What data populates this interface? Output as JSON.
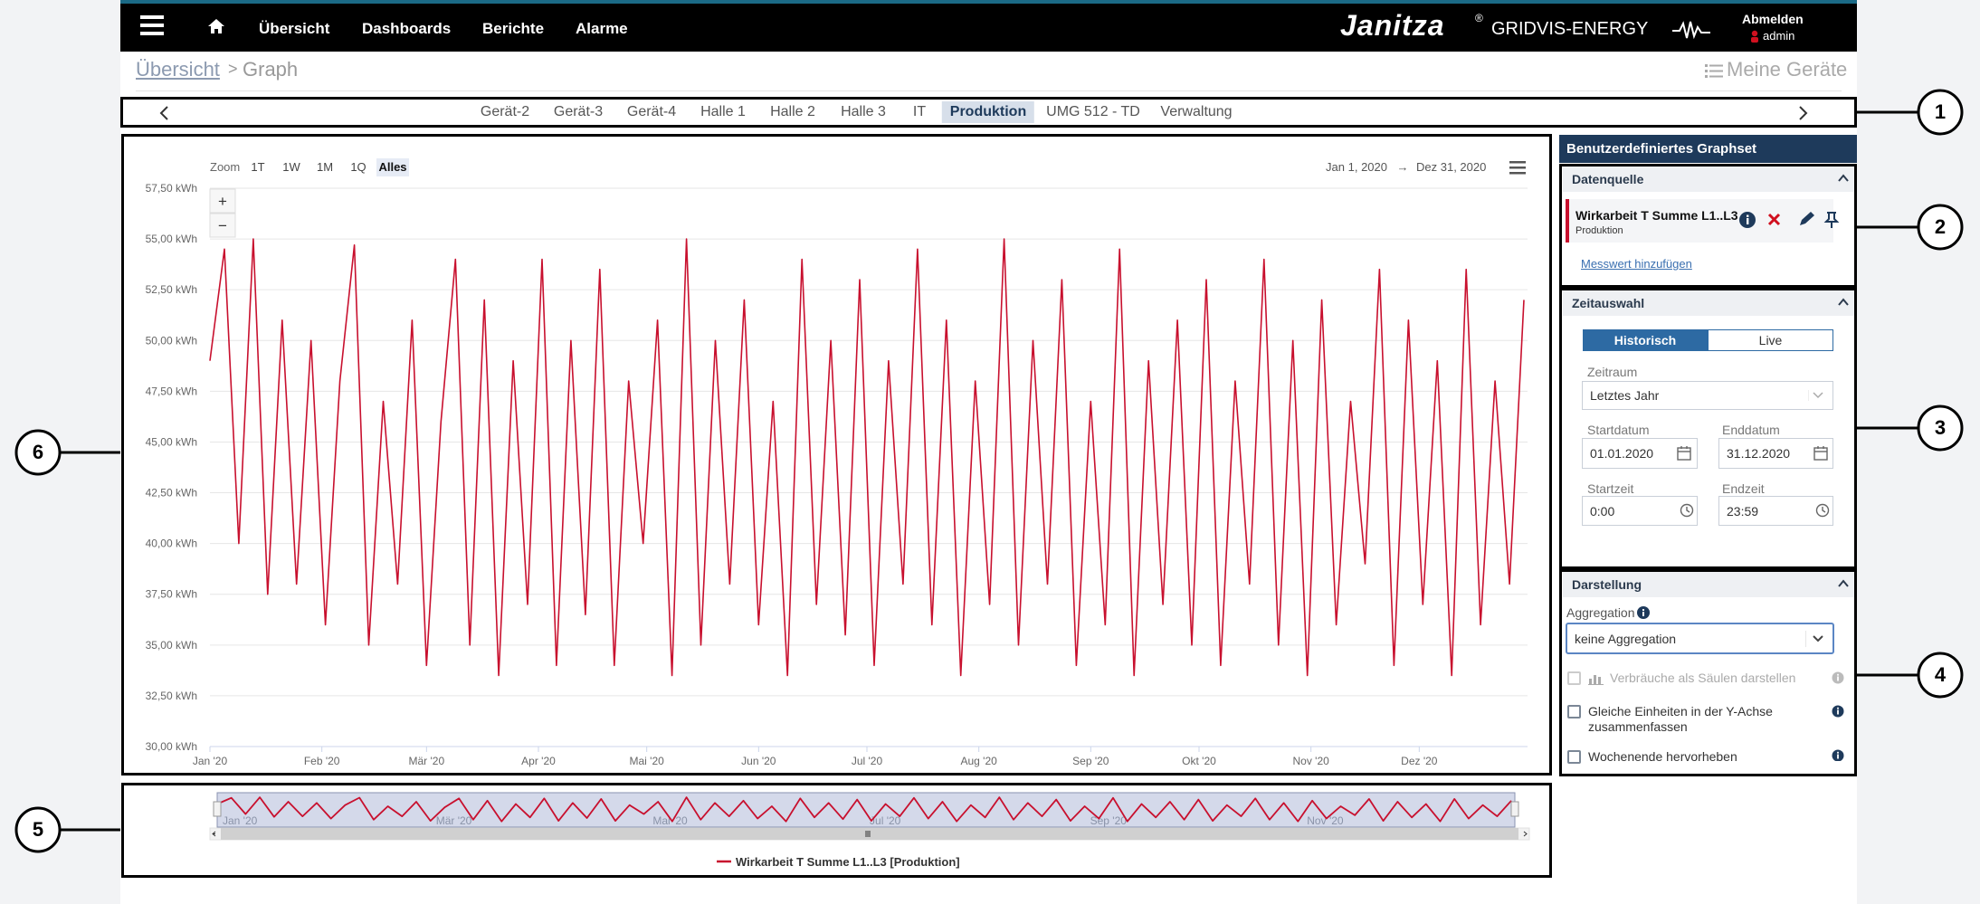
{
  "nav": {
    "items": [
      "Übersicht",
      "Dashboards",
      "Berichte",
      "Alarme"
    ],
    "brand": "Janitza",
    "trademark": "®",
    "product": "GRIDVIS-ENERGY",
    "logout": "Abmelden",
    "user": "admin"
  },
  "breadcrumb": {
    "link": "Übersicht",
    "separator": ">",
    "current": "Graph",
    "devices": "Meine Geräte"
  },
  "tabs": [
    {
      "label": "Gerät-2"
    },
    {
      "label": "Gerät-3"
    },
    {
      "label": "Gerät-4"
    },
    {
      "label": "Halle 1"
    },
    {
      "label": "Halle 2"
    },
    {
      "label": "Halle 3"
    },
    {
      "label": "IT"
    },
    {
      "label": "Produktion",
      "active": true
    },
    {
      "label": "UMG 512 - TD"
    },
    {
      "label": "Verwaltung"
    }
  ],
  "chart_data": {
    "type": "line",
    "zoom_label": "Zoom",
    "zoom_buttons": [
      {
        "label": "1T"
      },
      {
        "label": "1W"
      },
      {
        "label": "1M"
      },
      {
        "label": "1Q"
      },
      {
        "label": "Alles",
        "active": true
      }
    ],
    "zoom_in": "+",
    "zoom_out": "−",
    "range_from": "Jan 1, 2020",
    "range_separator": "→",
    "range_to": "Dez 31, 2020",
    "x": [
      0,
      4,
      8,
      12,
      16,
      20,
      24,
      28,
      32,
      36,
      40,
      44,
      48,
      52,
      56,
      60,
      64,
      68,
      72,
      76,
      80,
      84,
      88,
      92,
      96,
      100,
      104,
      108,
      112,
      116,
      120,
      124,
      128,
      132,
      136,
      140,
      144,
      148,
      152,
      156,
      160,
      164,
      168,
      172,
      176,
      180,
      184,
      188,
      192,
      196,
      200,
      204,
      208,
      212,
      216,
      220,
      224,
      228,
      232,
      236,
      240,
      244,
      248,
      252,
      256,
      260,
      264,
      268,
      272,
      276,
      280,
      284,
      288,
      292,
      296,
      300,
      304,
      308,
      312,
      316,
      320,
      324,
      328,
      332,
      336,
      340,
      344,
      348,
      352,
      356,
      360,
      364
    ],
    "series": [
      {
        "name": "Wirkarbeit T Summe L1..L3 [Produktion]",
        "color": "#c8102e",
        "values": [
          49,
          54.5,
          40,
          55,
          37.5,
          51,
          38,
          50,
          36,
          48,
          54.7,
          35,
          47,
          38,
          51,
          34,
          46,
          54,
          35,
          52,
          33.5,
          49,
          37,
          54,
          34,
          50,
          36.5,
          53.5,
          34,
          48,
          40,
          51,
          33.5,
          55,
          35,
          50,
          38,
          52,
          36,
          47,
          33.5,
          54,
          37,
          50,
          35.5,
          53,
          34,
          49,
          38,
          54.5,
          36,
          51,
          33.5,
          48,
          37,
          55,
          35,
          50,
          38,
          53,
          34,
          47,
          36,
          54.5,
          33.5,
          49,
          37,
          51,
          35,
          53,
          34,
          48,
          38,
          54,
          35,
          50,
          33.5,
          52,
          36,
          47,
          39,
          53.5,
          34,
          51,
          37,
          49,
          33.5,
          53.5,
          36,
          48,
          38,
          52
        ]
      }
    ],
    "xlim": [
      0,
      365
    ],
    "xticks": [
      {
        "value": 0,
        "label": "Jan '20"
      },
      {
        "value": 31,
        "label": "Feb '20"
      },
      {
        "value": 60,
        "label": "Mär '20"
      },
      {
        "value": 91,
        "label": "Apr '20"
      },
      {
        "value": 121,
        "label": "Mai '20"
      },
      {
        "value": 152,
        "label": "Jun '20"
      },
      {
        "value": 182,
        "label": "Jul '20"
      },
      {
        "value": 213,
        "label": "Aug '20"
      },
      {
        "value": 244,
        "label": "Sep '20"
      },
      {
        "value": 274,
        "label": "Okt '20"
      },
      {
        "value": 305,
        "label": "Nov '20"
      },
      {
        "value": 335,
        "label": "Dez '20"
      }
    ],
    "ylim": [
      30,
      57.5
    ],
    "yticks": [
      {
        "value": 30,
        "label": "30,00 kWh"
      },
      {
        "value": 32.5,
        "label": "32,50 kWh"
      },
      {
        "value": 35,
        "label": "35,00 kWh"
      },
      {
        "value": 37.5,
        "label": "37,50 kWh"
      },
      {
        "value": 40,
        "label": "40,00 kWh"
      },
      {
        "value": 42.5,
        "label": "42,50 kWh"
      },
      {
        "value": 45,
        "label": "45,00 kWh"
      },
      {
        "value": 47.5,
        "label": "47,50 kWh"
      },
      {
        "value": 50,
        "label": "50,00 kWh"
      },
      {
        "value": 52.5,
        "label": "52,50 kWh"
      },
      {
        "value": 55,
        "label": "55,00 kWh"
      },
      {
        "value": 57.5,
        "label": "57,50 kWh"
      }
    ],
    "grid": true,
    "legend": "bottom",
    "navigator_labels": [
      "Jan '20",
      "Mär '20",
      "Mai '20",
      "Jul '20",
      "Sep '20",
      "Nov '20"
    ]
  },
  "panel": {
    "title": "Benutzerdefiniertes Graphset",
    "source": {
      "heading": "Datenquelle",
      "name": "Wirkarbeit T Summe L1..L3",
      "device": "Produktion",
      "add": "Messwert hinzufügen"
    },
    "time": {
      "heading": "Zeitauswahl",
      "modes": [
        "Historisch",
        "Live"
      ],
      "period_label": "Zeitraum",
      "period": "Letztes Jahr",
      "start_date_label": "Startdatum",
      "start_date": "01.01.2020",
      "end_date_label": "Enddatum",
      "end_date": "31.12.2020",
      "start_time_label": "Startzeit",
      "start_time": "0:00",
      "end_time_label": "Endzeit",
      "end_time": "23:59"
    },
    "display": {
      "heading": "Darstellung",
      "aggregation_label": "Aggregation",
      "aggregation": "keine Aggregation",
      "options": [
        "Verbräuche als Säulen darstellen",
        "Gleiche Einheiten in der Y-Achse zusammenfassen",
        "Wochenende hervorheben"
      ]
    }
  },
  "callouts": [
    1,
    2,
    3,
    4,
    5,
    6
  ]
}
